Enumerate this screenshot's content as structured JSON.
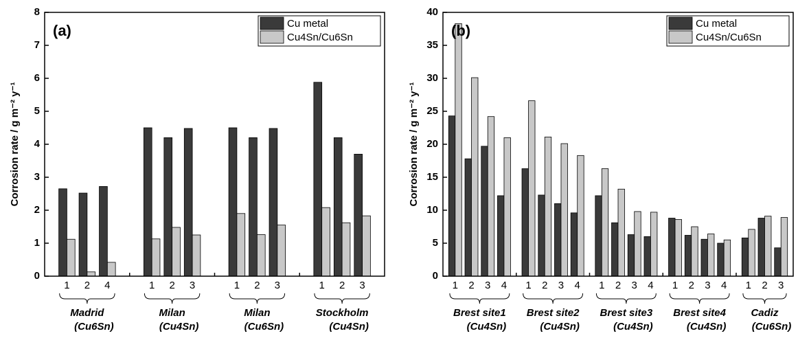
{
  "chart_data": [
    {
      "type": "bar",
      "panel_label": "(a)",
      "ylabel": "Corrosion rate / g m⁻² y⁻¹",
      "groups": [
        {
          "name": "Madrid",
          "subname": "(Cu6Sn)",
          "categories": [
            "1",
            "2",
            "4"
          ]
        },
        {
          "name": "Milan",
          "subname": "(Cu4Sn)",
          "categories": [
            "1",
            "2",
            "3"
          ]
        },
        {
          "name": "Milan",
          "subname": "(Cu6Sn)",
          "categories": [
            "1",
            "2",
            "3"
          ]
        },
        {
          "name": "Stockholm",
          "subname": "(Cu4Sn)",
          "categories": [
            "1",
            "2",
            "3"
          ]
        }
      ],
      "series": [
        {
          "name": "Cu metal",
          "color": "#3a3a3a",
          "values": [
            2.65,
            2.52,
            2.72,
            4.5,
            4.2,
            4.48,
            4.5,
            4.2,
            4.48,
            5.88,
            4.2,
            3.7
          ]
        },
        {
          "name": "Cu4Sn/Cu6Sn",
          "color": "#c8c8c8",
          "values": [
            1.12,
            0.13,
            0.42,
            1.13,
            1.48,
            1.25,
            1.9,
            1.26,
            1.55,
            2.08,
            1.62,
            1.83
          ]
        }
      ],
      "ylim": [
        0,
        8
      ],
      "yticks": [
        0,
        1,
        2,
        3,
        4,
        5,
        6,
        7,
        8
      ],
      "legend": "upper right"
    },
    {
      "type": "bar",
      "panel_label": "(b)",
      "ylabel": "Corrosion rate / g m⁻² y⁻¹",
      "groups": [
        {
          "name": "Brest site1",
          "subname": "(Cu4Sn)",
          "categories": [
            "1",
            "2",
            "3",
            "4"
          ]
        },
        {
          "name": "Brest site2",
          "subname": "(Cu4Sn)",
          "categories": [
            "1",
            "2",
            "3",
            "4"
          ]
        },
        {
          "name": "Brest site3",
          "subname": "(Cu4Sn)",
          "categories": [
            "1",
            "2",
            "3",
            "4"
          ]
        },
        {
          "name": "Brest site4",
          "subname": "(Cu4Sn)",
          "categories": [
            "1",
            "2",
            "3",
            "4"
          ]
        },
        {
          "name": "Cadiz",
          "subname": "(Cu6Sn)",
          "categories": [
            "1",
            "2",
            "3"
          ]
        }
      ],
      "series": [
        {
          "name": "Cu metal",
          "color": "#3a3a3a",
          "values": [
            24.3,
            17.8,
            19.7,
            12.2,
            16.3,
            12.3,
            11.0,
            9.6,
            12.2,
            8.1,
            6.3,
            6.0,
            8.8,
            6.2,
            5.6,
            5.0,
            5.8,
            8.8,
            4.3
          ]
        },
        {
          "name": "Cu4Sn/Cu6Sn",
          "color": "#c8c8c8",
          "values": [
            38.3,
            30.1,
            24.2,
            21.0,
            26.6,
            21.1,
            20.1,
            18.3,
            16.3,
            13.2,
            9.8,
            9.7,
            8.6,
            7.5,
            6.4,
            5.5,
            7.1,
            9.1,
            8.9
          ]
        }
      ],
      "ylim": [
        0,
        40
      ],
      "yticks": [
        0,
        5,
        10,
        15,
        20,
        25,
        30,
        35,
        40
      ],
      "legend": "upper right"
    }
  ]
}
